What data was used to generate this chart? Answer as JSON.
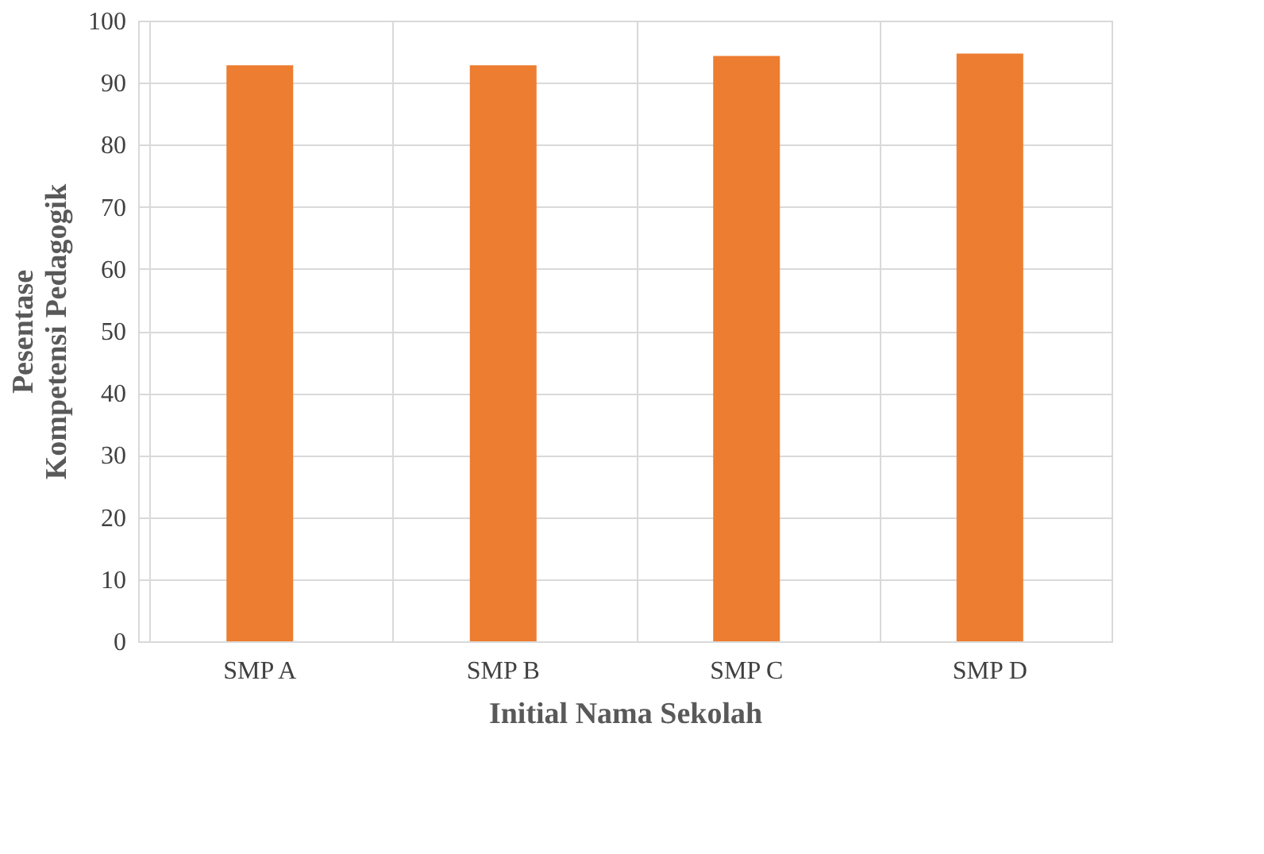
{
  "chart_data": {
    "type": "bar",
    "xlabel": "Initial Nama Sekolah",
    "ylabel": "Pesentase\nKompetensi Pedagogik",
    "categories": [
      "SMP A",
      "SMP B",
      "SMP C",
      "SMP D"
    ],
    "values": [
      92.8,
      92.8,
      94.3,
      94.7
    ],
    "color": "#ed7d31",
    "ylim": [
      0,
      100
    ],
    "yticks": [
      0,
      10,
      20,
      30,
      40,
      50,
      60,
      70,
      80,
      90,
      100
    ],
    "grid": true
  }
}
